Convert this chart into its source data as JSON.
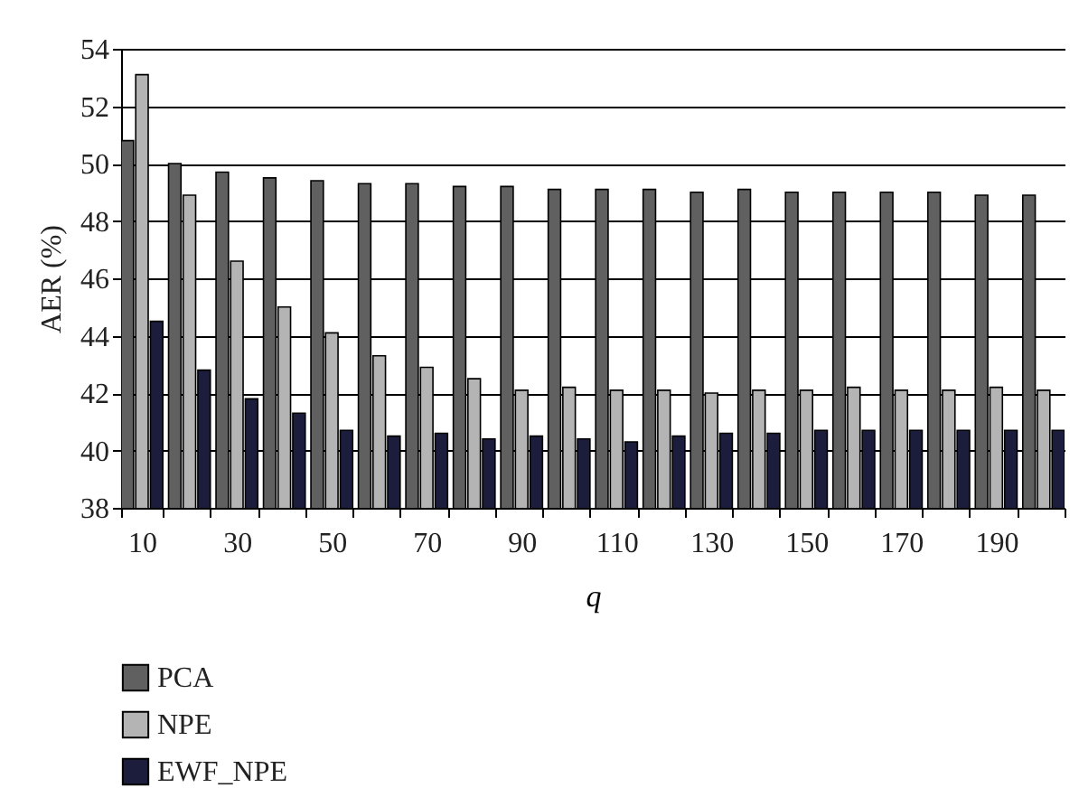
{
  "chart_data": {
    "type": "bar",
    "xlabel": "q",
    "ylabel": "AER (%)",
    "categories": [
      "10",
      null,
      "30",
      null,
      "50",
      null,
      "70",
      null,
      "90",
      null,
      "110",
      null,
      "130",
      null,
      "150",
      null,
      "170",
      null,
      "190",
      null
    ],
    "series": [
      {
        "name": "PCA",
        "color": "#606060",
        "values": [
          50.8,
          50.0,
          49.7,
          49.5,
          49.4,
          49.3,
          49.3,
          49.2,
          49.2,
          49.1,
          49.1,
          49.1,
          49.0,
          49.1,
          49.0,
          49.0,
          49.0,
          49.0,
          48.9,
          48.9
        ]
      },
      {
        "name": "NPE",
        "color": "#b4b4b4",
        "values": [
          53.1,
          48.9,
          46.6,
          45.0,
          44.1,
          43.3,
          42.9,
          42.5,
          42.1,
          42.2,
          42.1,
          42.1,
          42.0,
          42.1,
          42.1,
          42.2,
          42.1,
          42.1,
          42.2,
          42.1
        ]
      },
      {
        "name": "EWF_NPE",
        "color": "#1c1c3c",
        "values": [
          44.5,
          42.8,
          41.8,
          41.3,
          40.7,
          40.5,
          40.6,
          40.4,
          40.5,
          40.4,
          40.3,
          40.5,
          40.6,
          40.6,
          40.7,
          40.7,
          40.7,
          40.7,
          40.7,
          40.7
        ]
      }
    ],
    "ylim": [
      38,
      54
    ],
    "yticks": [
      38,
      40,
      42,
      44,
      46,
      48,
      50,
      52,
      54
    ],
    "grid": "y",
    "legend": "bottom left"
  }
}
